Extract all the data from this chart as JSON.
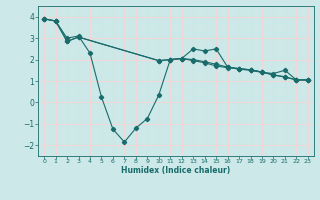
{
  "xlabel": "Humidex (Indice chaleur)",
  "bg_color": "#cce8e8",
  "grid_color": "#f0d8d8",
  "line_color": "#1a6b6b",
  "xlim": [
    -0.5,
    23.5
  ],
  "ylim": [
    -2.5,
    4.5
  ],
  "xticks": [
    0,
    1,
    2,
    3,
    4,
    5,
    6,
    7,
    8,
    9,
    10,
    11,
    12,
    13,
    14,
    15,
    16,
    17,
    18,
    19,
    20,
    21,
    22,
    23
  ],
  "yticks": [
    -2,
    -1,
    0,
    1,
    2,
    3,
    4
  ],
  "line1_x": [
    0,
    1,
    2,
    3,
    4,
    5,
    6,
    7,
    8,
    9,
    10,
    11,
    12,
    13,
    14,
    15,
    16,
    17,
    18,
    19,
    20,
    21,
    22,
    23
  ],
  "line1_y": [
    3.9,
    3.8,
    3.0,
    3.1,
    2.3,
    0.25,
    -1.25,
    -1.85,
    -1.2,
    -0.75,
    0.35,
    2.0,
    2.05,
    2.5,
    2.4,
    2.5,
    1.65,
    1.55,
    1.5,
    1.4,
    1.35,
    1.5,
    1.05,
    1.05
  ],
  "line2_x": [
    0,
    1,
    2,
    3,
    10,
    11,
    12,
    13,
    14,
    15,
    16,
    17,
    18,
    19,
    20,
    21,
    22,
    23
  ],
  "line2_y": [
    3.9,
    3.8,
    2.85,
    3.05,
    1.95,
    2.0,
    2.05,
    1.95,
    1.85,
    1.7,
    1.62,
    1.58,
    1.52,
    1.42,
    1.28,
    1.18,
    1.05,
    1.05
  ],
  "line3_x": [
    0,
    1,
    2,
    3,
    10,
    11,
    12,
    13,
    14,
    15,
    16,
    17,
    18,
    19,
    20,
    21,
    22,
    23
  ],
  "line3_y": [
    3.9,
    3.8,
    2.85,
    3.05,
    1.95,
    2.0,
    2.05,
    2.0,
    1.9,
    1.78,
    1.65,
    1.58,
    1.52,
    1.42,
    1.28,
    1.2,
    1.05,
    1.05
  ]
}
